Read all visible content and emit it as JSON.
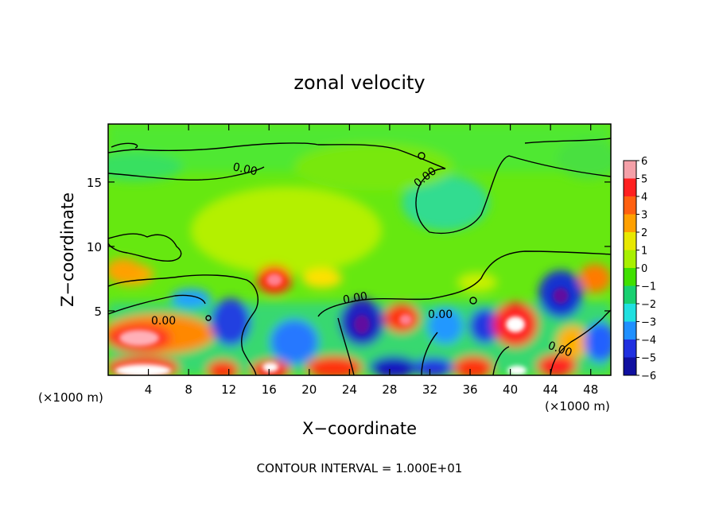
{
  "chart_data": {
    "type": "heatmap",
    "title": "zonal velocity",
    "xlabel": "X−coordinate",
    "ylabel": "Z−coordinate",
    "x_unit_left": "(×1000 m)",
    "x_unit_right": "(×1000 m)",
    "footer": "CONTOUR INTERVAL = 1.000E+01",
    "xlim": [
      0,
      50
    ],
    "ylim": [
      0,
      19.5
    ],
    "x_ticks": [
      4,
      8,
      12,
      16,
      20,
      24,
      28,
      32,
      36,
      40,
      44,
      48
    ],
    "y_ticks": [
      5,
      10,
      15
    ],
    "colorbar": {
      "levels": [
        6,
        5,
        4,
        3,
        2,
        1,
        0,
        -1,
        -2,
        -3,
        -4,
        -5,
        -6
      ],
      "colors": [
        "#f4a0a8",
        "#ff2020",
        "#ff6010",
        "#ffa000",
        "#e8e800",
        "#a8f000",
        "#40e000",
        "#18d070",
        "#20e0e0",
        "#2090ff",
        "#2030e0",
        "#1010a0",
        "#7010a0"
      ]
    },
    "contour_labels": [
      "0.00",
      "0.00",
      "0.00",
      "0.00",
      "0.00",
      "0.00"
    ],
    "colors": {
      "background_field": "#66e810",
      "contour_line": "#000000"
    }
  }
}
